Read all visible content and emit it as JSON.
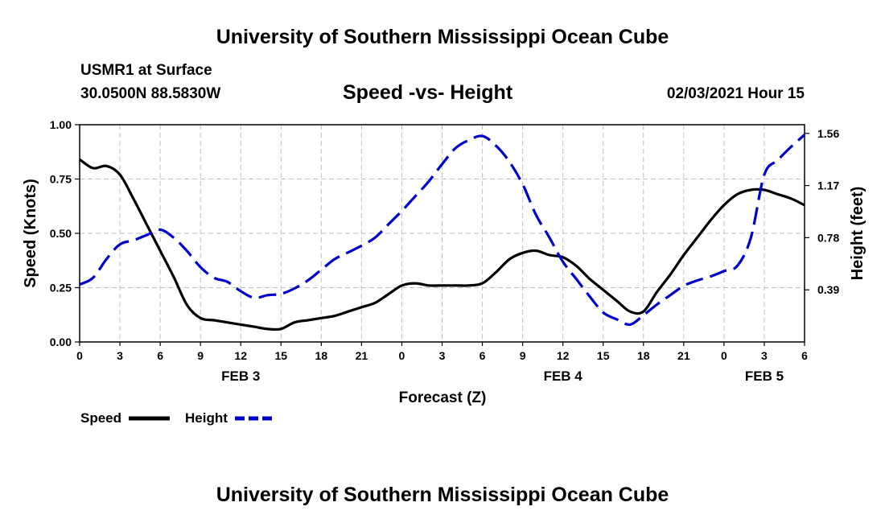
{
  "header": {
    "title": "University of Southern Mississippi Ocean Cube",
    "station": "USMR1 at Surface",
    "coords": "30.0500N 88.5830W",
    "chart_title": "Speed -vs- Height",
    "datetime": "02/03/2021 Hour 15"
  },
  "footer": {
    "title": "University of Southern Mississippi Ocean Cube"
  },
  "legend": {
    "speed_label": "Speed",
    "height_label": "Height"
  },
  "colors": {
    "speed": "#000000",
    "height": "#0000cc",
    "grid": "#bfbfbf"
  },
  "chart_data": {
    "type": "line",
    "title": "Speed -vs- Height",
    "xlabel": "Forecast (Z)",
    "ylabel": "Speed (Knots)",
    "y2label": "Height (feet)",
    "xlim": [
      0,
      54
    ],
    "ylim": [
      0,
      1
    ],
    "y2lim": [
      0,
      1.625
    ],
    "x_ticks": [
      0,
      3,
      6,
      9,
      12,
      15,
      18,
      21,
      24,
      27,
      30,
      33,
      36,
      39,
      42,
      45,
      48,
      51,
      54
    ],
    "x_tick_labels": [
      "0",
      "3",
      "6",
      "9",
      "12",
      "15",
      "18",
      "21",
      "0",
      "3",
      "6",
      "9",
      "12",
      "15",
      "18",
      "21",
      "0",
      "3",
      "6"
    ],
    "day_labels": [
      {
        "text": "FEB 3",
        "x": 12
      },
      {
        "text": "FEB 4",
        "x": 36
      },
      {
        "text": "FEB 5",
        "x": 51
      }
    ],
    "y_ticks": [
      0,
      0.25,
      0.5,
      0.75,
      1.0
    ],
    "y_tick_labels": [
      "0.00",
      "0.25",
      "0.50",
      "0.75",
      "1.00"
    ],
    "y2_ticks": [
      0.39,
      0.78,
      1.17,
      1.56
    ],
    "y2_tick_labels": [
      "0.39",
      "0.78",
      "1.17",
      "1.56"
    ],
    "series": [
      {
        "name": "Speed",
        "axis": "left",
        "style": "solid",
        "x": [
          0,
          1,
          2,
          3,
          4,
          5,
          6,
          7,
          8,
          9,
          10,
          11,
          12,
          13,
          14,
          15,
          16,
          17,
          18,
          19,
          20,
          21,
          22,
          23,
          24,
          25,
          26,
          27,
          28,
          29,
          30,
          31,
          32,
          33,
          34,
          35,
          36,
          37,
          38,
          39,
          40,
          41,
          42,
          43,
          44,
          45,
          46,
          47,
          48,
          49,
          50,
          51,
          52,
          53,
          54
        ],
        "values": [
          0.84,
          0.8,
          0.81,
          0.77,
          0.66,
          0.54,
          0.42,
          0.3,
          0.17,
          0.11,
          0.1,
          0.09,
          0.08,
          0.07,
          0.06,
          0.06,
          0.09,
          0.1,
          0.11,
          0.12,
          0.14,
          0.16,
          0.18,
          0.22,
          0.26,
          0.27,
          0.26,
          0.26,
          0.26,
          0.26,
          0.27,
          0.32,
          0.38,
          0.41,
          0.42,
          0.4,
          0.39,
          0.35,
          0.29,
          0.24,
          0.19,
          0.14,
          0.14,
          0.23,
          0.31,
          0.4,
          0.48,
          0.56,
          0.63,
          0.68,
          0.7,
          0.7,
          0.68,
          0.66,
          0.63
        ]
      },
      {
        "name": "Height",
        "axis": "right",
        "style": "dashed",
        "x": [
          0,
          1,
          2,
          3,
          4,
          5,
          6,
          7,
          8,
          9,
          10,
          11,
          12,
          13,
          14,
          15,
          16,
          17,
          18,
          19,
          20,
          21,
          22,
          23,
          24,
          25,
          26,
          27,
          28,
          29,
          30,
          31,
          32,
          33,
          34,
          35,
          36,
          37,
          38,
          39,
          40,
          41,
          42,
          43,
          44,
          45,
          46,
          47,
          48,
          49,
          50,
          51,
          52,
          53,
          54
        ],
        "values": [
          0.43,
          0.48,
          0.62,
          0.73,
          0.76,
          0.8,
          0.84,
          0.78,
          0.68,
          0.56,
          0.48,
          0.45,
          0.38,
          0.33,
          0.35,
          0.36,
          0.4,
          0.46,
          0.54,
          0.62,
          0.67,
          0.72,
          0.78,
          0.88,
          0.98,
          1.09,
          1.2,
          1.33,
          1.45,
          1.51,
          1.54,
          1.47,
          1.35,
          1.18,
          0.95,
          0.78,
          0.6,
          0.47,
          0.34,
          0.22,
          0.17,
          0.13,
          0.2,
          0.28,
          0.35,
          0.42,
          0.46,
          0.49,
          0.53,
          0.57,
          0.78,
          1.25,
          1.36,
          1.46,
          1.55
        ]
      }
    ]
  }
}
